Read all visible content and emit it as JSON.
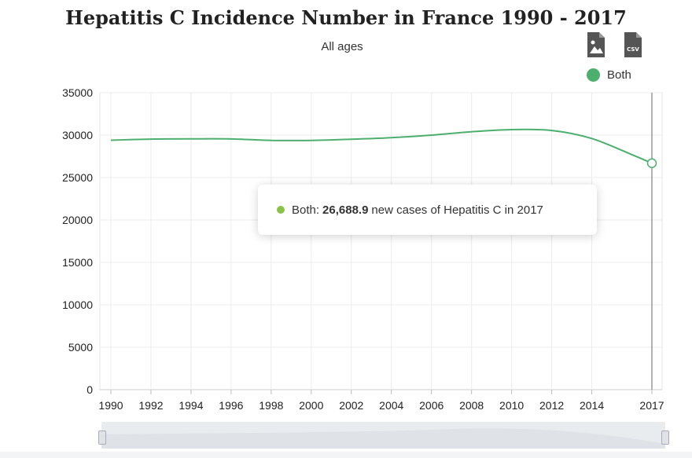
{
  "page": {
    "title": "Hepatitis C Incidence Number in France 1990 - 2017",
    "subtitle": "All ages"
  },
  "icons": [
    "image-download-icon",
    "csv-download-icon"
  ],
  "download": {
    "csv_label": "CSV"
  },
  "legend": {
    "label": "Both",
    "color": "#4caf6e"
  },
  "tooltip": {
    "series": "Both:",
    "value": "26,688.9",
    "text": "new cases of Hepatitis C in 2017",
    "dot_color": "#8bc34a"
  },
  "chart_data": {
    "type": "line",
    "title": "Hepatitis C Incidence Number in France 1990 - 2017",
    "subtitle": "All ages",
    "xlabel": "",
    "ylabel": "",
    "ylim": [
      0,
      35000
    ],
    "xlim": [
      1990,
      2017
    ],
    "yticks": [
      "0",
      "5000",
      "10000",
      "15000",
      "20000",
      "25000",
      "30000",
      "35000"
    ],
    "xticks": [
      "1990",
      "1992",
      "1994",
      "1996",
      "1998",
      "2000",
      "2002",
      "2004",
      "2006",
      "2008",
      "2010",
      "2012",
      "2014",
      "2017"
    ],
    "grid": true,
    "legend_position": "top-right",
    "series": [
      {
        "name": "Both",
        "color": "#4caf6e",
        "x": [
          1990,
          1992,
          1994,
          1996,
          1998,
          2000,
          2002,
          2004,
          2006,
          2008,
          2010,
          2012,
          2014,
          2016,
          2017
        ],
        "values": [
          29400,
          29530,
          29560,
          29550,
          29380,
          29380,
          29520,
          29700,
          30000,
          30400,
          30650,
          30550,
          29600,
          27700,
          26688.9
        ]
      }
    ],
    "highlight": {
      "x": 2017,
      "value": 26688.9
    }
  }
}
